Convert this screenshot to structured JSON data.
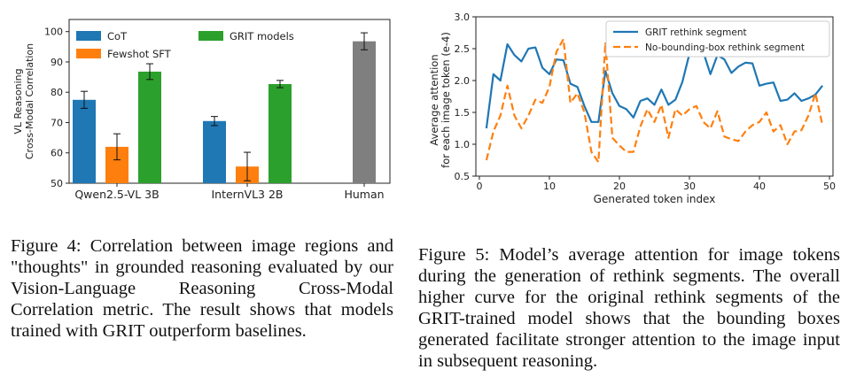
{
  "chart_data": [
    {
      "type": "bar",
      "ylabel": "VL Reasoning\nCross-Modal Correlation",
      "ylim": [
        50,
        104
      ],
      "yticks": [
        50,
        60,
        70,
        80,
        90,
        100
      ],
      "groups": [
        "Qwen2.5-VL 3B",
        "InternVL3 2B",
        "Human"
      ],
      "series": [
        {
          "name": "CoT",
          "color": "#1f77b4",
          "values": [
            77.5,
            70.5,
            null
          ],
          "errors": [
            2.8,
            1.5,
            null
          ]
        },
        {
          "name": "Fewshot SFT",
          "color": "#ff7f0e",
          "values": [
            62,
            55.5,
            null
          ],
          "errors": [
            4.3,
            4.7,
            null
          ]
        },
        {
          "name": "GRIT models",
          "color": "#2ca02c",
          "values": [
            86.8,
            82.7,
            null
          ],
          "errors": [
            2.6,
            1.2,
            null
          ]
        },
        {
          "name": "",
          "color": "#7f7f7f",
          "values": [
            null,
            null,
            96.8
          ],
          "errors": [
            null,
            null,
            2.8
          ]
        }
      ],
      "legend_placement": "top-left"
    },
    {
      "type": "line",
      "xlabel": "Generated token index",
      "ylabel": "Average attention\nfor each image token (e-4)",
      "xlim": [
        -0.5,
        50.5
      ],
      "ylim": [
        0.5,
        3.0
      ],
      "xticks": [
        0,
        10,
        20,
        30,
        40,
        50
      ],
      "yticks": [
        0.5,
        1.0,
        1.5,
        2.0,
        2.5,
        3.0
      ],
      "x": [
        1,
        2,
        3,
        4,
        5,
        6,
        7,
        8,
        9,
        10,
        11,
        12,
        13,
        14,
        15,
        16,
        17,
        18,
        19,
        20,
        21,
        22,
        23,
        24,
        25,
        26,
        27,
        28,
        29,
        30,
        31,
        32,
        33,
        34,
        35,
        36,
        37,
        38,
        39,
        40,
        41,
        42,
        43,
        44,
        45,
        46,
        47,
        48,
        49
      ],
      "series": [
        {
          "name": "GRIT rethink segment",
          "color": "#1f77b4",
          "dash": "solid",
          "values": [
            1.25,
            2.1,
            2.0,
            2.57,
            2.4,
            2.3,
            2.5,
            2.52,
            2.2,
            2.1,
            2.33,
            2.32,
            1.95,
            1.9,
            1.6,
            1.35,
            1.35,
            2.15,
            1.8,
            1.6,
            1.55,
            1.42,
            1.68,
            1.72,
            1.62,
            1.86,
            1.62,
            1.7,
            1.98,
            2.42,
            2.47,
            2.44,
            2.1,
            2.4,
            2.33,
            2.12,
            2.22,
            2.28,
            2.27,
            1.92,
            1.95,
            1.97,
            1.68,
            1.7,
            1.8,
            1.68,
            1.72,
            1.78,
            1.92
          ]
        },
        {
          "name": "No-bounding-box rethink segment",
          "color": "#ff7f0e",
          "dash": "dashed",
          "values": [
            0.75,
            1.2,
            1.45,
            1.92,
            1.45,
            1.25,
            1.45,
            1.7,
            1.65,
            1.9,
            2.45,
            2.65,
            1.65,
            1.8,
            1.5,
            0.88,
            0.72,
            2.6,
            1.1,
            0.98,
            0.88,
            0.88,
            1.28,
            1.55,
            1.35,
            1.62,
            1.1,
            1.55,
            1.45,
            1.55,
            1.6,
            1.35,
            1.25,
            1.52,
            1.12,
            1.08,
            1.05,
            1.2,
            1.3,
            1.35,
            1.5,
            1.2,
            1.3,
            1.0,
            1.2,
            1.22,
            1.45,
            1.8,
            1.3
          ]
        }
      ],
      "legend_placement": "top-right"
    }
  ],
  "captions": {
    "fig4": "Figure 4: Correlation between image regions and \"thoughts\" in grounded reasoning evaluated by our Vision-Language Reasoning Cross-Modal Correlation metric. The result shows that models trained with GRIT outperform baselines.",
    "fig5": "Figure 5: Model’s average attention for image tokens during the generation of rethink segments. The overall higher curve for the original rethink segments of the GRIT-trained model shows that the bounding boxes generated facilitate stronger attention to the image input in subsequent reasoning."
  }
}
